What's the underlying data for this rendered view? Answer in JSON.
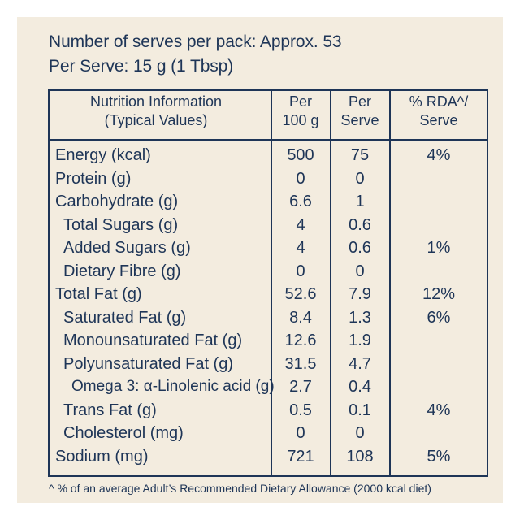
{
  "header": {
    "serves_per_pack": "Number of serves per pack: Approx. 53",
    "per_serve": "Per Serve: 15 g (1 Tbsp)"
  },
  "table": {
    "columns": {
      "name": [
        "Nutrition Information",
        "(Typical Values)"
      ],
      "per_100g": [
        "Per",
        "100 g"
      ],
      "per_serve": [
        "Per",
        "Serve"
      ],
      "rda": [
        "% RDA^/",
        "Serve"
      ]
    },
    "rows": [
      {
        "name": "Energy (kcal)",
        "per_100g": "500",
        "per_serve": "75",
        "rda": "4%",
        "level": 0
      },
      {
        "name": "Protein (g)",
        "per_100g": "0",
        "per_serve": "0",
        "rda": "",
        "level": 0
      },
      {
        "name": "Carbohydrate (g)",
        "per_100g": "6.6",
        "per_serve": "1",
        "rda": "",
        "level": 0
      },
      {
        "name": "Total Sugars (g)",
        "per_100g": "4",
        "per_serve": "0.6",
        "rda": "",
        "level": 1
      },
      {
        "name": "Added Sugars (g)",
        "per_100g": "4",
        "per_serve": "0.6",
        "rda": "1%",
        "level": 1
      },
      {
        "name": "Dietary Fibre (g)",
        "per_100g": "0",
        "per_serve": "0",
        "rda": "",
        "level": 1
      },
      {
        "name": "Total Fat (g)",
        "per_100g": "52.6",
        "per_serve": "7.9",
        "rda": "12%",
        "level": 0
      },
      {
        "name": "Saturated Fat (g)",
        "per_100g": "8.4",
        "per_serve": "1.3",
        "rda": "6%",
        "level": 1
      },
      {
        "name": "Monounsaturated Fat (g)",
        "per_100g": "12.6",
        "per_serve": "1.9",
        "rda": "",
        "level": 1
      },
      {
        "name": "Polyunsaturated Fat (g)",
        "per_100g": "31.5",
        "per_serve": "4.7",
        "rda": "",
        "level": 1
      },
      {
        "name": "Omega 3: α-Linolenic acid (g)",
        "per_100g": "2.7",
        "per_serve": "0.4",
        "rda": "",
        "level": 2
      },
      {
        "name": "Trans Fat (g)",
        "per_100g": "0.5",
        "per_serve": "0.1",
        "rda": "4%",
        "level": 1
      },
      {
        "name": "Cholesterol (mg)",
        "per_100g": "0",
        "per_serve": "0",
        "rda": "",
        "level": 1
      },
      {
        "name": "Sodium (mg)",
        "per_100g": "721",
        "per_serve": "108",
        "rda": "5%",
        "level": 0
      }
    ]
  },
  "footnote": "^ % of an average Adult’s Recommended Dietary Allowance (2000 kcal diet)",
  "colors": {
    "background": "#f3ecdf",
    "text": "#1e3557",
    "border": "#1e3557"
  }
}
